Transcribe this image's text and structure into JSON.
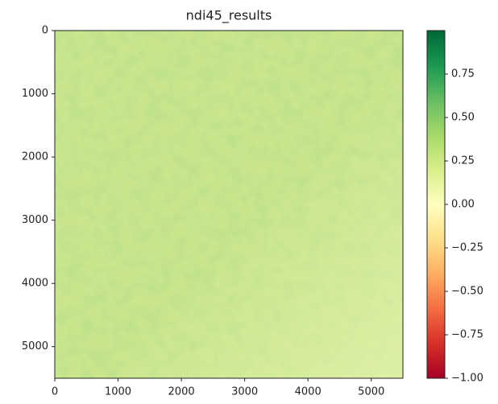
{
  "chart_data": {
    "type": "image",
    "title": "ndi45_results",
    "xlim": [
      0,
      5500
    ],
    "xticks": [
      0,
      1000,
      2000,
      3000,
      4000,
      5000
    ],
    "ylim": [
      0,
      5500
    ],
    "y_inverted": true,
    "yticks": [
      0,
      1000,
      2000,
      3000,
      4000,
      5000
    ],
    "colorbar": {
      "colormap": "RdYlGn",
      "lim": [
        -1,
        1
      ],
      "ticks": [
        {
          "value": 0.75,
          "label": "0.75"
        },
        {
          "value": 0.5,
          "label": "0.50"
        },
        {
          "value": 0.25,
          "label": "0.25"
        },
        {
          "value": 0,
          "label": "0.00"
        },
        {
          "value": -0.25,
          "label": "−0.25"
        },
        {
          "value": -0.5,
          "label": "−0.50"
        },
        {
          "value": -0.75,
          "label": "−0.75"
        },
        {
          "value": -1,
          "label": "−1.00"
        }
      ]
    }
  }
}
